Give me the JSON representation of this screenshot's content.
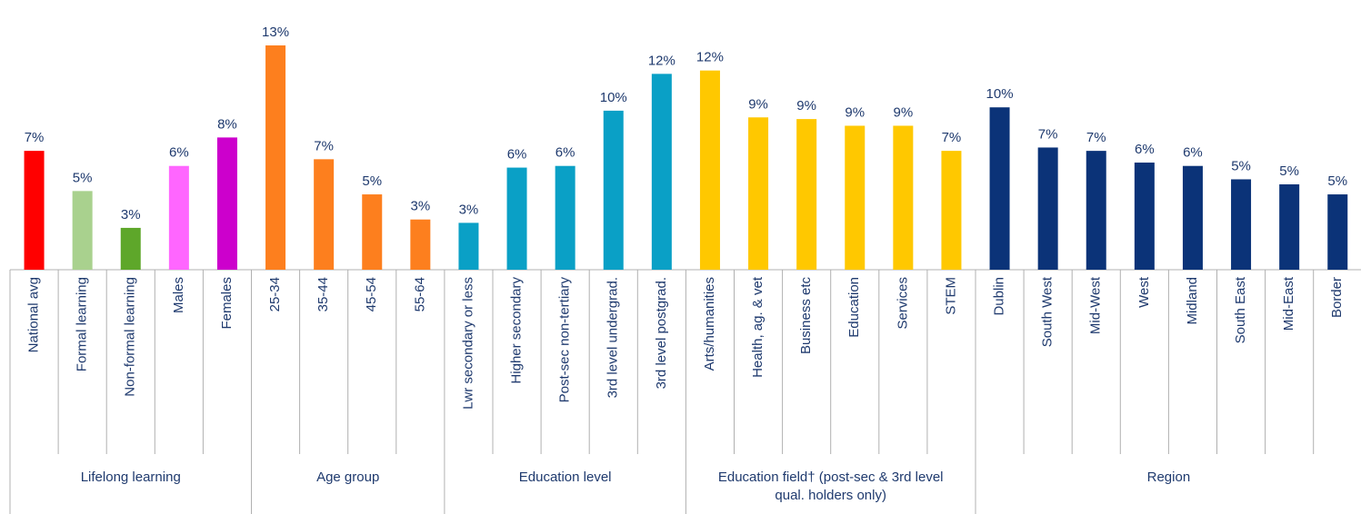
{
  "chart_data": {
    "type": "bar",
    "groups": [
      {
        "label": "Lifelong learning",
        "categories": [
          "National avg",
          "Formal learning",
          "Non-formal learning",
          "Males",
          "Females"
        ],
        "values": [
          7.1,
          4.7,
          2.5,
          6.2,
          7.9
        ],
        "value_labels": [
          "7%",
          "5%",
          "3%",
          "6%",
          "8%"
        ],
        "colors": [
          "#ff0000",
          "#a9d18e",
          "#5ea72a",
          "#ff66ff",
          "#cc00cc"
        ]
      },
      {
        "label": "Age group",
        "categories": [
          "25-34",
          "35-44",
          "45-54",
          "55-64"
        ],
        "values": [
          13.4,
          6.6,
          4.5,
          3.0
        ],
        "value_labels": [
          "13%",
          "7%",
          "5%",
          "3%"
        ],
        "colors": [
          "#fd7f1e",
          "#fd7f1e",
          "#fd7f1e",
          "#fd7f1e"
        ]
      },
      {
        "label": "Education level",
        "categories": [
          "Lwr secondary or less",
          "Higher secondary",
          "Post-sec non-tertiary",
          "3rd level undergrad.",
          "3rd level postgrad."
        ],
        "values": [
          2.8,
          6.1,
          6.2,
          9.5,
          11.7
        ],
        "value_labels": [
          "3%",
          "6%",
          "6%",
          "10%",
          "12%"
        ],
        "colors": [
          "#0aa0c6",
          "#0aa0c6",
          "#0aa0c6",
          "#0aa0c6",
          "#0aa0c6"
        ]
      },
      {
        "label": "Education field†  (post-sec & 3rd level qual. holders only)",
        "categories": [
          "Arts/humanities",
          "Health, ag. & vet",
          "Business etc",
          "Education",
          "Services",
          "STEM"
        ],
        "values": [
          11.9,
          9.1,
          9.0,
          8.6,
          8.6,
          7.1
        ],
        "value_labels": [
          "12%",
          "9%",
          "9%",
          "9%",
          "9%",
          "7%"
        ],
        "colors": [
          "#ffc800",
          "#ffc800",
          "#ffc800",
          "#ffc800",
          "#ffc800",
          "#ffc800"
        ]
      },
      {
        "label": "Region",
        "categories": [
          "Dublin",
          "South West",
          "Mid-West",
          "West",
          "Midland",
          "South East",
          "Mid-East",
          "Border"
        ],
        "values": [
          9.7,
          7.3,
          7.1,
          6.4,
          6.2,
          5.4,
          5.1,
          4.5
        ],
        "value_labels": [
          "10%",
          "7%",
          "7%",
          "6%",
          "6%",
          "5%",
          "5%",
          "5%"
        ],
        "colors": [
          "#0b3378",
          "#0b3378",
          "#0b3378",
          "#0b3378",
          "#0b3378",
          "#0b3378",
          "#0b3378",
          "#0b3378"
        ]
      }
    ]
  }
}
